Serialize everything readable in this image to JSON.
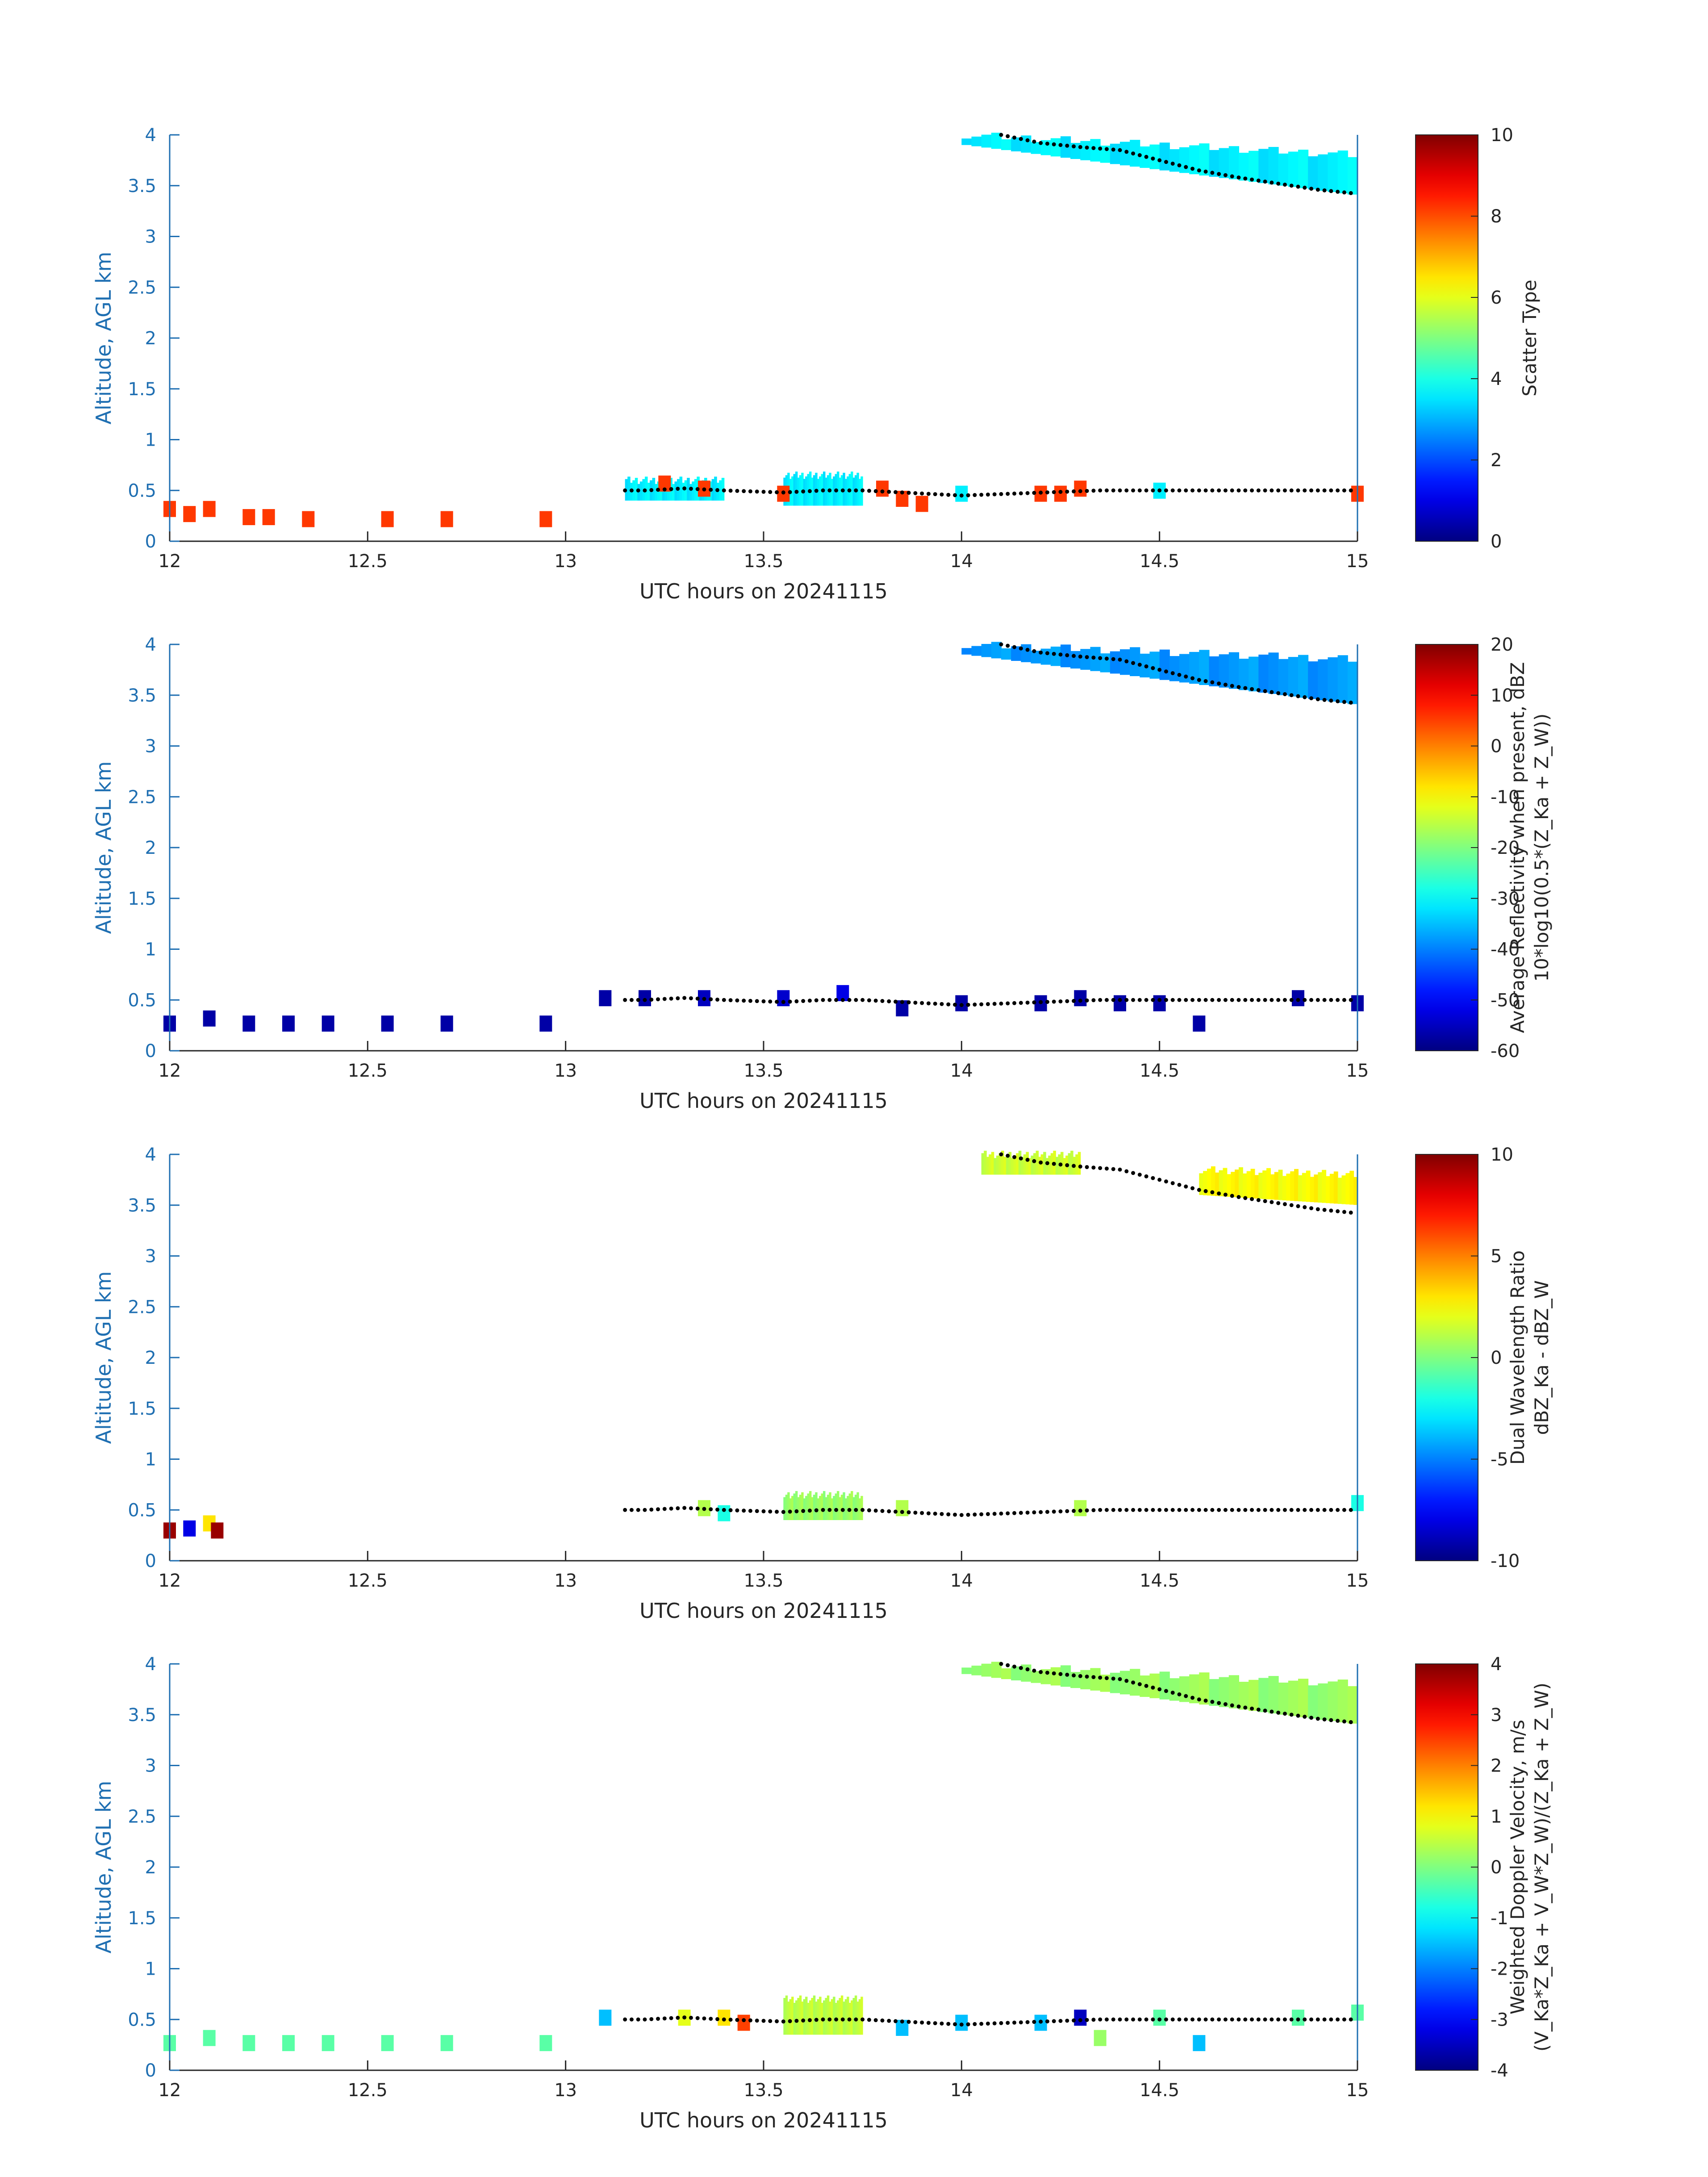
{
  "figure": {
    "xlabel": "UTC hours on 20241115",
    "ylabel": "Altitude, AGL km",
    "xticks": [
      "12",
      "12.5",
      "13",
      "13.5",
      "14",
      "14.5",
      "15"
    ],
    "yticks": [
      "0",
      "0.5",
      "1",
      "1.5",
      "2",
      "2.5",
      "3",
      "3.5",
      "4"
    ]
  },
  "chart_data": [
    {
      "type": "heatmap",
      "title": "",
      "xlabel": "UTC hours on 20241115",
      "ylabel": "Altitude, AGL km",
      "xlim": [
        12,
        15
      ],
      "ylim": [
        0,
        4
      ],
      "colorbar": {
        "label_lines": [
          "Scatter Type"
        ],
        "range": [
          0,
          10
        ],
        "ticks": [
          "0",
          "2",
          "4",
          "6",
          "8",
          "10"
        ],
        "colormap": "jet"
      },
      "regions": [
        {
          "x": [
            14.0,
            15.0
          ],
          "y_top_start": 4.0,
          "y_top_end": 3.8,
          "y_bottom_start": 3.9,
          "y_bottom_end": 3.4,
          "value": 3.6
        },
        {
          "x": [
            13.15,
            13.4
          ],
          "y": [
            0.4,
            0.6
          ],
          "value": 3.6
        },
        {
          "x": [
            13.55,
            13.75
          ],
          "y": [
            0.35,
            0.65
          ],
          "value": 3.6
        }
      ],
      "points": [
        {
          "x": 12.0,
          "y": 0.3,
          "v": 8.2
        },
        {
          "x": 12.05,
          "y": 0.25,
          "v": 8.2
        },
        {
          "x": 12.1,
          "y": 0.3,
          "v": 8.2
        },
        {
          "x": 12.2,
          "y": 0.22,
          "v": 8.2
        },
        {
          "x": 12.25,
          "y": 0.22,
          "v": 8.2
        },
        {
          "x": 12.35,
          "y": 0.2,
          "v": 8.2
        },
        {
          "x": 12.55,
          "y": 0.2,
          "v": 8.2
        },
        {
          "x": 12.7,
          "y": 0.2,
          "v": 8.2
        },
        {
          "x": 12.95,
          "y": 0.2,
          "v": 8.2
        },
        {
          "x": 13.25,
          "y": 0.55,
          "v": 8.2
        },
        {
          "x": 13.35,
          "y": 0.5,
          "v": 8.2
        },
        {
          "x": 13.55,
          "y": 0.45,
          "v": 8.2
        },
        {
          "x": 13.8,
          "y": 0.5,
          "v": 8.2
        },
        {
          "x": 13.85,
          "y": 0.4,
          "v": 8.2
        },
        {
          "x": 13.9,
          "y": 0.35,
          "v": 8.2
        },
        {
          "x": 14.2,
          "y": 0.45,
          "v": 8.2
        },
        {
          "x": 14.25,
          "y": 0.45,
          "v": 8.2
        },
        {
          "x": 14.3,
          "y": 0.5,
          "v": 8.2
        },
        {
          "x": 14.5,
          "y": 0.48,
          "v": 3.6
        },
        {
          "x": 15.0,
          "y": 0.45,
          "v": 8.2
        },
        {
          "x": 14.0,
          "y": 0.45,
          "v": 3.6
        }
      ]
    },
    {
      "type": "heatmap",
      "title": "",
      "xlabel": "UTC hours on 20241115",
      "ylabel": "Altitude, AGL km",
      "xlim": [
        12,
        15
      ],
      "ylim": [
        0,
        4
      ],
      "colorbar": {
        "label_lines": [
          "Average Reflectivity when present, dBZ",
          "10*log10(0.5*(Z_Ka + Z_W))"
        ],
        "range": [
          -60,
          20
        ],
        "ticks": [
          "-60",
          "-50",
          "-40",
          "-30",
          "-20",
          "-10",
          "0",
          "10",
          "20"
        ],
        "colormap": "jet"
      },
      "regions": [
        {
          "x": [
            14.0,
            15.0
          ],
          "y_top_start": 4.0,
          "y_top_end": 3.85,
          "y_bottom_start": 3.9,
          "y_bottom_end": 3.4,
          "value": -38
        }
      ],
      "points": [
        {
          "x": 12.0,
          "y": 0.25,
          "v": -57
        },
        {
          "x": 12.1,
          "y": 0.3,
          "v": -57
        },
        {
          "x": 12.2,
          "y": 0.25,
          "v": -57
        },
        {
          "x": 12.3,
          "y": 0.25,
          "v": -57
        },
        {
          "x": 12.4,
          "y": 0.25,
          "v": -57
        },
        {
          "x": 12.55,
          "y": 0.25,
          "v": -57
        },
        {
          "x": 12.7,
          "y": 0.25,
          "v": -57
        },
        {
          "x": 12.95,
          "y": 0.25,
          "v": -57
        },
        {
          "x": 13.1,
          "y": 0.5,
          "v": -57
        },
        {
          "x": 13.2,
          "y": 0.5,
          "v": -57
        },
        {
          "x": 13.35,
          "y": 0.5,
          "v": -55
        },
        {
          "x": 13.55,
          "y": 0.5,
          "v": -54
        },
        {
          "x": 13.7,
          "y": 0.55,
          "v": -52
        },
        {
          "x": 13.85,
          "y": 0.4,
          "v": -57
        },
        {
          "x": 14.0,
          "y": 0.45,
          "v": -57
        },
        {
          "x": 14.2,
          "y": 0.45,
          "v": -57
        },
        {
          "x": 14.3,
          "y": 0.5,
          "v": -57
        },
        {
          "x": 14.4,
          "y": 0.45,
          "v": -57
        },
        {
          "x": 14.5,
          "y": 0.45,
          "v": -57
        },
        {
          "x": 14.6,
          "y": 0.25,
          "v": -57
        },
        {
          "x": 14.85,
          "y": 0.5,
          "v": -57
        },
        {
          "x": 15.0,
          "y": 0.45,
          "v": -57
        }
      ]
    },
    {
      "type": "heatmap",
      "title": "",
      "xlabel": "UTC hours on 20241115",
      "ylabel": "Altitude, AGL km",
      "xlim": [
        12,
        15
      ],
      "ylim": [
        0,
        4
      ],
      "colorbar": {
        "label_lines": [
          "Dual Wavelength Ratio",
          "dBZ_Ka - dBZ_W"
        ],
        "range": [
          -10,
          10
        ],
        "ticks": [
          "-10",
          "-5",
          "0",
          "5",
          "10"
        ],
        "colormap": "jet"
      },
      "regions": [
        {
          "x": [
            14.6,
            15.0
          ],
          "y_top_start": 3.85,
          "y_top_end": 3.8,
          "y_bottom_start": 3.6,
          "y_bottom_end": 3.5,
          "value": 2.5
        },
        {
          "x": [
            14.05,
            14.3
          ],
          "y": [
            3.8,
            4.0
          ],
          "value": 1.5
        },
        {
          "x": [
            13.55,
            13.75
          ],
          "y": [
            0.4,
            0.65
          ],
          "value": 0.5
        }
      ],
      "points": [
        {
          "x": 12.0,
          "y": 0.28,
          "v": 9.5
        },
        {
          "x": 12.05,
          "y": 0.3,
          "v": -8
        },
        {
          "x": 12.1,
          "y": 0.35,
          "v": 3
        },
        {
          "x": 12.12,
          "y": 0.28,
          "v": 9.5
        },
        {
          "x": 13.35,
          "y": 0.5,
          "v": 1
        },
        {
          "x": 13.4,
          "y": 0.45,
          "v": -2
        },
        {
          "x": 13.85,
          "y": 0.5,
          "v": 1
        },
        {
          "x": 14.3,
          "y": 0.5,
          "v": 1
        },
        {
          "x": 15.0,
          "y": 0.55,
          "v": -2
        }
      ]
    },
    {
      "type": "heatmap",
      "title": "",
      "xlabel": "UTC hours on 20241115",
      "ylabel": "Altitude, AGL km",
      "xlim": [
        12,
        15
      ],
      "ylim": [
        0,
        4
      ],
      "colorbar": {
        "label_lines": [
          "Weighted Doppler Velocity, m/s",
          "(V_Ka*Z_Ka + V_W*Z_W)/(Z_Ka + Z_W)"
        ],
        "range": [
          -4,
          4
        ],
        "ticks": [
          "-4",
          "-3",
          "-2",
          "-1",
          "0",
          "1",
          "2",
          "3",
          "4"
        ],
        "colormap": "jet"
      },
      "regions": [
        {
          "x": [
            14.0,
            15.0
          ],
          "y_top_start": 4.0,
          "y_top_end": 3.8,
          "y_bottom_start": 3.9,
          "y_bottom_end": 3.4,
          "value": 0.2
        },
        {
          "x": [
            13.55,
            13.75
          ],
          "y": [
            0.35,
            0.7
          ],
          "value": 0.5
        }
      ],
      "points": [
        {
          "x": 12.0,
          "y": 0.25,
          "v": -0.3
        },
        {
          "x": 12.1,
          "y": 0.3,
          "v": -0.3
        },
        {
          "x": 12.2,
          "y": 0.25,
          "v": -0.3
        },
        {
          "x": 12.3,
          "y": 0.25,
          "v": -0.3
        },
        {
          "x": 12.4,
          "y": 0.25,
          "v": -0.3
        },
        {
          "x": 12.55,
          "y": 0.25,
          "v": -0.3
        },
        {
          "x": 12.7,
          "y": 0.25,
          "v": -0.3
        },
        {
          "x": 12.95,
          "y": 0.25,
          "v": -0.3
        },
        {
          "x": 13.1,
          "y": 0.5,
          "v": -1.5
        },
        {
          "x": 13.3,
          "y": 0.5,
          "v": 0.8
        },
        {
          "x": 13.4,
          "y": 0.5,
          "v": 1.2
        },
        {
          "x": 13.45,
          "y": 0.45,
          "v": 2.5
        },
        {
          "x": 13.85,
          "y": 0.4,
          "v": -1.5
        },
        {
          "x": 14.0,
          "y": 0.45,
          "v": -1.5
        },
        {
          "x": 14.2,
          "y": 0.45,
          "v": -1.5
        },
        {
          "x": 14.3,
          "y": 0.5,
          "v": -3.5
        },
        {
          "x": 14.35,
          "y": 0.3,
          "v": 0.2
        },
        {
          "x": 14.5,
          "y": 0.5,
          "v": -0.3
        },
        {
          "x": 14.6,
          "y": 0.25,
          "v": -1.5
        },
        {
          "x": 14.85,
          "y": 0.5,
          "v": -0.3
        },
        {
          "x": 15.0,
          "y": 0.55,
          "v": -0.3
        }
      ]
    }
  ],
  "overlay_line": {
    "style": "black dots",
    "upper_track": [
      [
        14.1,
        4.0
      ],
      [
        14.2,
        3.92
      ],
      [
        14.3,
        3.88
      ],
      [
        14.4,
        3.85
      ],
      [
        14.5,
        3.75
      ],
      [
        14.6,
        3.65
      ],
      [
        14.7,
        3.58
      ],
      [
        14.8,
        3.52
      ],
      [
        14.9,
        3.46
      ],
      [
        15.0,
        3.42
      ]
    ],
    "lower_track": [
      [
        13.15,
        0.5
      ],
      [
        13.2,
        0.5
      ],
      [
        13.3,
        0.52
      ],
      [
        13.4,
        0.5
      ],
      [
        13.55,
        0.48
      ],
      [
        13.65,
        0.5
      ],
      [
        13.75,
        0.5
      ],
      [
        14.0,
        0.45
      ],
      [
        14.35,
        0.5
      ],
      [
        14.5,
        0.5
      ],
      [
        15.0,
        0.5
      ]
    ]
  }
}
